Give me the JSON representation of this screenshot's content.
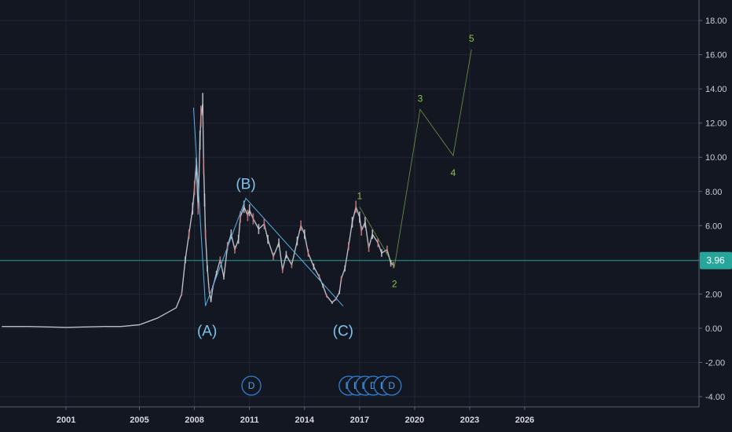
{
  "chart_data": {
    "type": "line",
    "title": "",
    "xlabel": "",
    "ylabel": "",
    "x_ticks": [
      "2001",
      "2005",
      "2008",
      "2011",
      "2014",
      "2017",
      "2020",
      "2023",
      "2026"
    ],
    "y_ticks": [
      "-4.00",
      "-2.00",
      "0.00",
      "2.00",
      "4.00",
      "6.00",
      "8.00",
      "10.00",
      "12.00",
      "14.00",
      "16.00",
      "18.00"
    ],
    "xlim": [
      1997.4,
      2035.5
    ],
    "ylim": [
      -4.6,
      19.2
    ],
    "grid": true,
    "current_price": {
      "value": 3.96,
      "label": "3.96",
      "color": "#26a69a"
    },
    "price_series": {
      "x": [
        1997.5,
        1999,
        2001,
        2003,
        2004,
        2005,
        2005.5,
        2006,
        2006.5,
        2007,
        2007.3,
        2007.5,
        2007.7,
        2007.9,
        2008,
        2008.1,
        2008.2,
        2008.3,
        2008.35,
        2008.45,
        2008.5,
        2008.55,
        2008.6,
        2008.7,
        2008.8,
        2008.9,
        2009,
        2009.2,
        2009.4,
        2009.6,
        2009.8,
        2010,
        2010.2,
        2010.4,
        2010.5,
        2010.7,
        2010.9,
        2011,
        2011.2,
        2011.5,
        2011.8,
        2012,
        2012.3,
        2012.6,
        2012.8,
        2013,
        2013.3,
        2013.6,
        2013.8,
        2014,
        2014.2,
        2014.5,
        2014.8,
        2015,
        2015.2,
        2015.5,
        2015.7,
        2015.9,
        2016,
        2016.2,
        2016.4,
        2016.6,
        2016.8,
        2017,
        2017.1,
        2017.3,
        2017.5,
        2017.7,
        2018,
        2018.2,
        2018.5,
        2018.7,
        2018.85
      ],
      "y": [
        0.1,
        0.1,
        0.05,
        0.1,
        0.1,
        0.2,
        0.4,
        0.6,
        0.9,
        1.2,
        2.0,
        4.0,
        5.5,
        7.0,
        8.2,
        9.5,
        7.0,
        11.0,
        12.4,
        13.1,
        9.5,
        7.5,
        5.5,
        3.5,
        2.2,
        1.6,
        2.4,
        3.2,
        4.0,
        3.0,
        4.8,
        5.5,
        4.6,
        5.2,
        6.5,
        7.1,
        6.6,
        6.9,
        6.4,
        5.8,
        6.1,
        5.2,
        4.2,
        5.0,
        3.4,
        4.3,
        3.7,
        5.1,
        6.0,
        5.5,
        4.4,
        3.6,
        3.0,
        2.5,
        1.9,
        1.5,
        1.7,
        2.1,
        2.9,
        3.5,
        4.8,
        6.2,
        7.1,
        6.5,
        5.7,
        6.2,
        4.7,
        5.5,
        5.0,
        4.4,
        4.6,
        3.8,
        3.7
      ]
    },
    "corrective_wave": {
      "points": [
        {
          "x": 2007.95,
          "y": 12.9,
          "label": ""
        },
        {
          "x": 2008.6,
          "y": 1.3,
          "label": "(A)"
        },
        {
          "x": 2010.8,
          "y": 7.6,
          "label": "(B)"
        },
        {
          "x": 2016.1,
          "y": 1.3,
          "label": "(C)"
        }
      ],
      "color": "#5aaee6"
    },
    "impulse_wave": {
      "points": [
        {
          "x": 2017.0,
          "y": 7.1,
          "label": "1"
        },
        {
          "x": 2018.9,
          "y": 3.6,
          "label": "2"
        },
        {
          "x": 2020.3,
          "y": 12.8,
          "label": "3"
        },
        {
          "x": 2022.1,
          "y": 10.1,
          "label": "4"
        },
        {
          "x": 2023.1,
          "y": 16.3,
          "label": "5"
        }
      ],
      "color": "#8bc34a"
    },
    "dividend_markers": {
      "label": "D",
      "x": [
        2011.1,
        2016.4,
        2016.85,
        2017.3,
        2017.75,
        2018.3,
        2018.75
      ],
      "color": "#2f7fd1"
    }
  }
}
